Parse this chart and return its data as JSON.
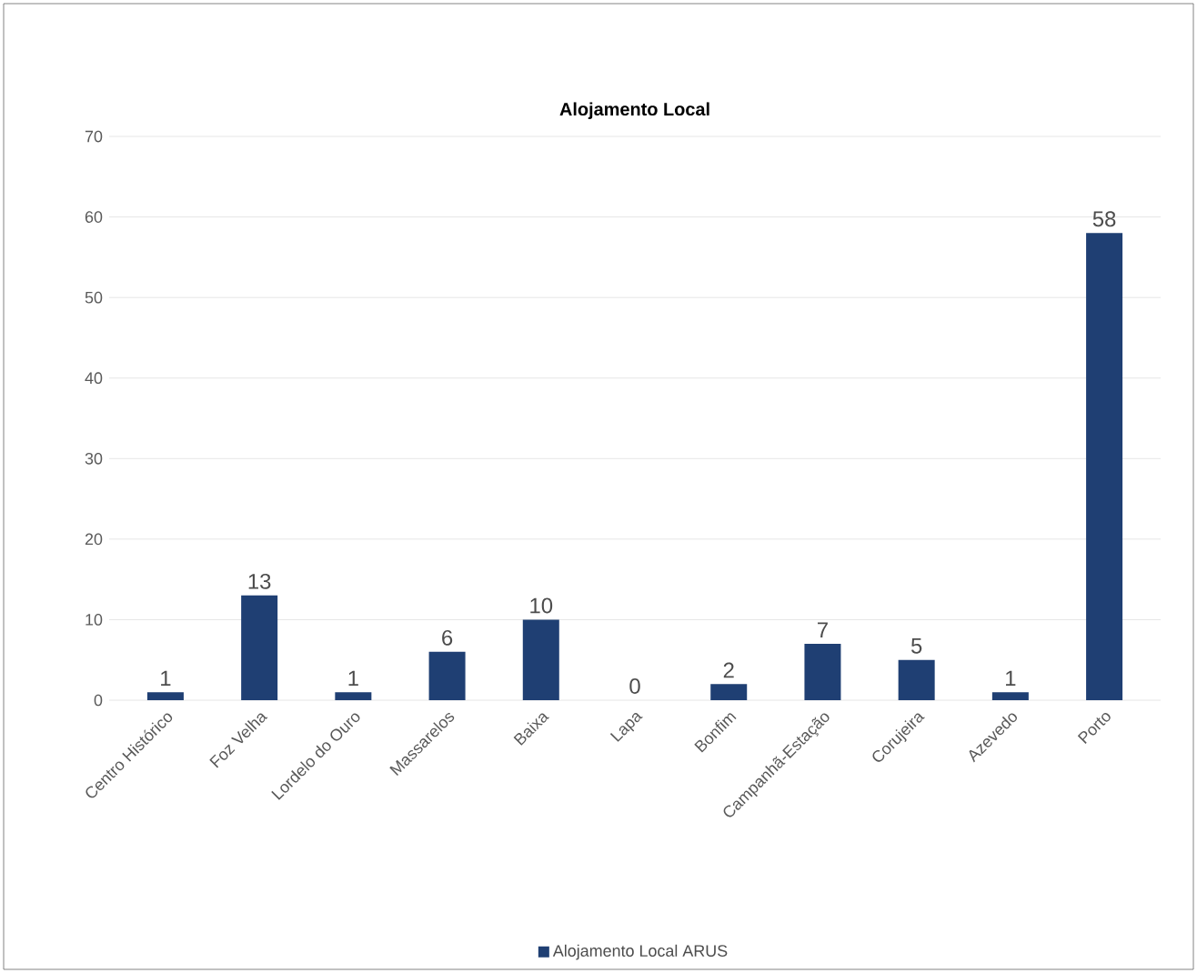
{
  "chart_data": {
    "type": "bar",
    "title": "Alojamento Local",
    "categories": [
      "Centro Histórico",
      "Foz Velha",
      "Lordelo do Ouro",
      "Massarelos",
      "Baixa",
      "Lapa",
      "Bonfim",
      "Campanhã-Estação",
      "Corujeira",
      "Azevedo",
      "Porto"
    ],
    "series": [
      {
        "name": "Alojamento Local ARUS",
        "color": "#1f3f73",
        "values": [
          1,
          13,
          1,
          6,
          10,
          0,
          2,
          7,
          5,
          1,
          58
        ]
      }
    ],
    "ylim": [
      0,
      70
    ],
    "yticks": [
      0,
      10,
      20,
      30,
      40,
      50,
      60,
      70
    ],
    "grid": "y",
    "legend": "bottom",
    "data_labels": true
  }
}
